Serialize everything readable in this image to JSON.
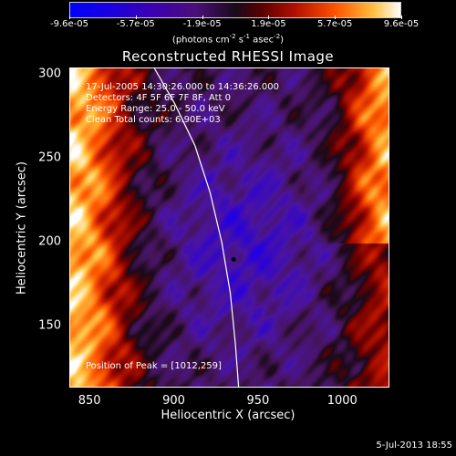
{
  "colorbar": {
    "ticks": [
      "-9.6e-05",
      "-5.7e-05",
      "-1.9e-05",
      "1.9e-05",
      "5.7e-05",
      "9.6e-05"
    ],
    "units_main": "(photons cm",
    "units_exp1": "-2",
    "units_mid": " s",
    "units_exp2": "-1",
    "units_end": " asec",
    "units_exp3": "-2",
    "units_close": ")",
    "range": [
      -9.6e-05,
      9.6e-05
    ]
  },
  "info": {
    "time_range": "17-Jul-2005 14:30:26.000 to 14:36:26.000",
    "detectors": "Detectors: 4F 5F 6F 7F 8F, Att 0",
    "energy": "Energy Range: 25.0 - 50.0 keV",
    "clean": "Clean    Total counts: 6.90E+03",
    "peak": "Position of Peak = [1012,259]"
  },
  "footer": "5-Jul-2013 18:55",
  "chart_data": {
    "type": "heatmap",
    "title": "Reconstructed RHESSI Image",
    "xlabel": "Heliocentric X (arcsec)",
    "ylabel": "Heliocentric Y (arcsec)",
    "xlim": [
      838,
      1028
    ],
    "ylim": [
      113,
      304
    ],
    "xticks": [
      850,
      900,
      950,
      1000
    ],
    "yticks": [
      150,
      200,
      250,
      300
    ],
    "xtick_labels": [
      "850",
      "900",
      "950",
      "1000"
    ],
    "ytick_labels": [
      "150",
      "200",
      "250",
      "300"
    ],
    "peak": [
      1012,
      259
    ],
    "marker": [
      935,
      190
    ],
    "limb": [
      [
        888,
        304
      ],
      [
        900,
        283
      ],
      [
        912,
        258
      ],
      [
        921,
        230
      ],
      [
        928,
        200
      ],
      [
        933,
        170
      ],
      [
        936,
        140
      ],
      [
        938,
        113
      ]
    ]
  }
}
